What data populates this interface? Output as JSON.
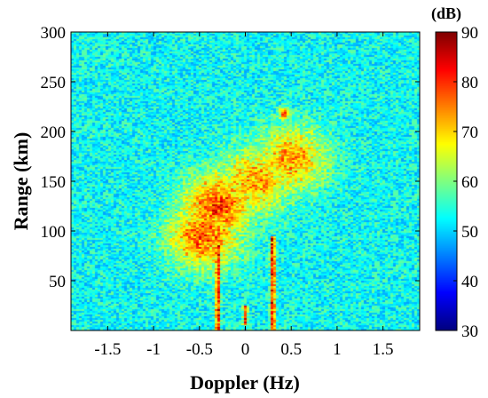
{
  "chart_data": {
    "type": "heatmap",
    "title": "",
    "xlabel": "Doppler (Hz)",
    "ylabel": "Range (km)",
    "xlim": [
      -1.9,
      1.9
    ],
    "ylim": [
      0,
      300
    ],
    "xticks": [
      -1.5,
      -1,
      -0.5,
      0,
      0.5,
      1,
      1.5
    ],
    "xtick_labels": [
      "-1.5",
      "-1",
      "-0.5",
      "0",
      "0.5",
      "1",
      "1.5"
    ],
    "yticks": [
      50,
      100,
      150,
      200,
      250,
      300
    ],
    "ytick_labels": [
      "50",
      "100",
      "150",
      "200",
      "250",
      "300"
    ],
    "colorbar": {
      "unit": "(dB)",
      "range": [
        30,
        90
      ],
      "ticks": [
        30,
        40,
        50,
        60,
        70,
        80,
        90
      ],
      "tick_labels": [
        "30",
        "40",
        "50",
        "60",
        "70",
        "80",
        "90"
      ],
      "colormap": "jet"
    },
    "background_level_db": 53,
    "features": [
      {
        "kind": "echo-band",
        "doppler_hz": -0.3,
        "range_km": 125,
        "peak_db": 80
      },
      {
        "kind": "echo-band",
        "doppler_hz": 0.1,
        "range_km": 150,
        "peak_db": 74
      },
      {
        "kind": "echo-band",
        "doppler_hz": 0.5,
        "range_km": 172,
        "peak_db": 74
      },
      {
        "kind": "echo-band",
        "doppler_hz": -0.45,
        "range_km": 95,
        "peak_db": 78
      },
      {
        "kind": "vertical-line",
        "doppler_hz": -0.3,
        "range_km_from": 0,
        "range_km_to": 85,
        "peak_db": 86
      },
      {
        "kind": "vertical-line",
        "doppler_hz": 0.3,
        "range_km_from": 0,
        "range_km_to": 95,
        "peak_db": 86
      },
      {
        "kind": "vertical-line",
        "doppler_hz": 0.0,
        "range_km_from": 5,
        "range_km_to": 25,
        "peak_db": 80
      },
      {
        "kind": "spot",
        "doppler_hz": 0.42,
        "range_km": 218,
        "peak_db": 76
      }
    ]
  }
}
